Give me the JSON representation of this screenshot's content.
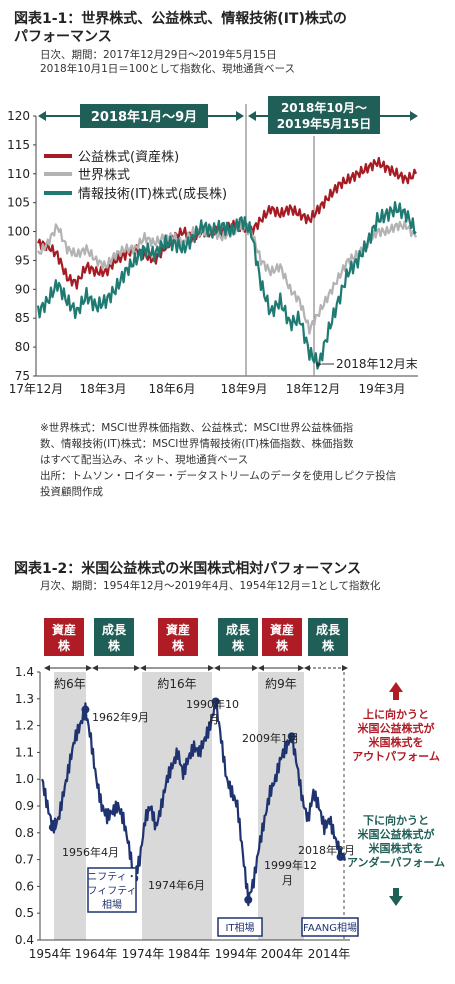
{
  "figure1": {
    "title_line1": "図表1-1：世界株式、公益株式、情報技術(IT)株式の",
    "title_line2": "パフォーマンス",
    "sub_line1": "日次、期間：2017年12月29日～2019年5月15日",
    "sub_line2": "2018年10月1日＝100として指数化、現地通貨ベース",
    "notes": [
      "※世界株式：MSCI世界株価指数、公益株式：MSCI世界公益株価指",
      "数、情報技術(IT)株式：MSCI世界情報技術(IT)株価指数、株価指数",
      "はすべて配当込み、ネット、現地通貨ベース",
      "出所：トムソン・ロイター・データストリームのデータを使用しピクテ投信",
      "投資顧問作成"
    ]
  },
  "figure2": {
    "title": "図表1-2：米国公益株式の米国株式相対パフォーマンス",
    "sub": "月次、期間：1954年12月～2019年4月、1954年12月＝1として指数化"
  },
  "colors": {
    "utilities": "#a51c24",
    "world": "#b3b3b3",
    "it": "#1f7a72",
    "teal_box": "#1f5f57",
    "red_box": "#b01c26",
    "navy": "#1f3370",
    "shade": "#d9d9d9"
  },
  "chart_data": [
    {
      "type": "line",
      "ylim": [
        75,
        120
      ],
      "y_ticks": [
        "120",
        "115",
        "110",
        "105",
        "100",
        "95",
        "90",
        "85",
        "80",
        "75"
      ],
      "x_ticks": [
        "17年12月",
        "18年3月",
        "18年6月",
        "18年9月",
        "18年12月",
        "19年3月"
      ],
      "period_labels": [
        "2018年1月～9月",
        "2018年10月～\n2019年5月15日"
      ],
      "annotation": "2018年12月末",
      "series": [
        {
          "name": "公益株式(資産株)",
          "values": [
            98,
            97.5,
            96,
            92,
            91,
            94,
            93,
            93,
            95,
            96,
            97,
            96,
            95,
            97,
            99,
            100,
            99,
            100,
            100,
            100,
            101,
            101,
            100,
            102,
            104,
            103,
            104,
            103,
            102,
            104,
            106,
            108,
            109,
            110,
            111,
            112,
            111,
            110,
            109,
            110
          ]
        },
        {
          "name": "世界株式",
          "values": [
            96,
            98,
            101,
            97,
            96,
            97,
            95,
            94,
            96,
            97,
            97,
            99,
            98,
            99,
            99,
            98,
            100,
            100,
            100,
            99,
            100,
            101,
            100,
            95,
            93,
            94,
            90,
            88,
            83,
            86,
            89,
            92,
            95,
            96,
            98,
            100,
            100,
            101,
            101,
            99
          ]
        },
        {
          "name": "情報技術(IT)株式(成長株)",
          "values": [
            86,
            88,
            91,
            88,
            86,
            89,
            87,
            88,
            90,
            93,
            95,
            97,
            96,
            98,
            98,
            97,
            99,
            101,
            100,
            101,
            100,
            102,
            100,
            91,
            86,
            88,
            84,
            85,
            79,
            77,
            83,
            88,
            93,
            95,
            98,
            102,
            103,
            104,
            103,
            100
          ]
        }
      ]
    },
    {
      "type": "line",
      "ylim": [
        0.4,
        1.4
      ],
      "y_ticks": [
        "1.4",
        "1.3",
        "1.2",
        "1.1",
        "1.0",
        "0.9",
        "0.8",
        "0.7",
        "0.6",
        "0.5",
        "0.4"
      ],
      "x_ticks": [
        "1954年",
        "1964年",
        "1974年",
        "1984年",
        "1994年",
        "2004年",
        "2014年"
      ],
      "series": [
        {
          "name": "",
          "values": [
            1.0,
            0.9,
            0.82,
            0.85,
            0.95,
            1.05,
            1.15,
            1.2,
            1.26,
            1.15,
            1.0,
            0.9,
            0.86,
            0.88,
            0.9,
            0.85,
            0.75,
            0.63,
            0.7,
            0.85,
            0.9,
            0.82,
            0.9,
            1.0,
            1.05,
            1.1,
            1.02,
            1.08,
            1.12,
            1.1,
            1.15,
            1.2,
            1.29,
            1.15,
            1.0,
            0.95,
            0.9,
            0.72,
            0.55,
            0.62,
            0.75,
            0.85,
            0.95,
            1.0,
            1.08,
            1.12,
            1.16,
            1.05,
            0.92,
            0.85,
            0.95,
            0.9,
            0.82,
            0.85,
            0.78,
            0.72,
            0.71
          ]
        }
      ],
      "phases": [
        "資産株",
        "成長株",
        "資産株",
        "成長株",
        "資産株",
        "成長株"
      ],
      "periods": [
        "約6年",
        "約16年",
        "約9年"
      ],
      "point_labels": [
        "1956年4月",
        "1962年9月",
        "1974年6月",
        "1990年10月",
        "1999年12月",
        "2009年1月",
        "2018年2月"
      ],
      "box_labels": [
        "ニフティ・フィフティ相場",
        "IT相場",
        "FAANG相場"
      ],
      "right_labels": [
        "上に向かうと",
        "米国公益株式が",
        "米国株式を",
        "アウトパフォーム",
        "下に向かうと",
        "米国公益株式が",
        "米国株式を",
        "アンダーパフォーム"
      ]
    }
  ]
}
